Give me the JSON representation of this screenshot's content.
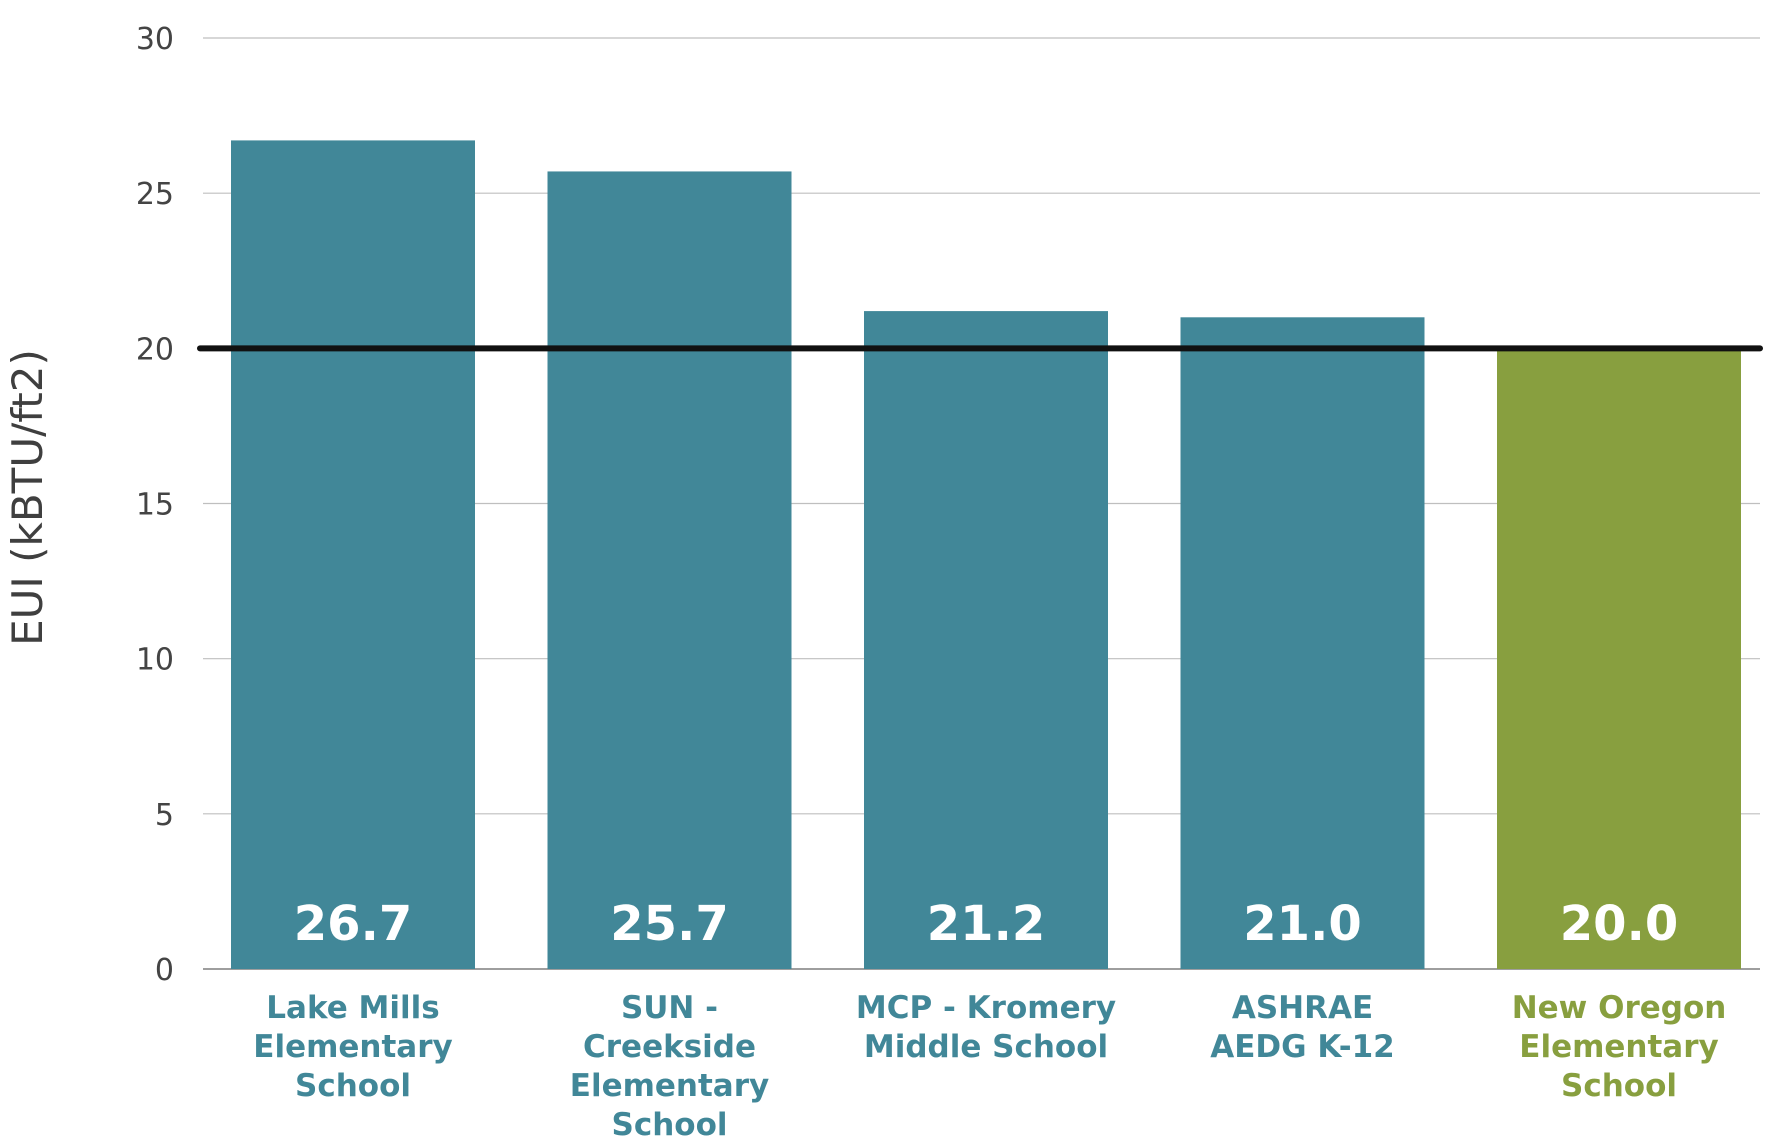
{
  "chart_data": {
    "type": "bar",
    "title": "",
    "xlabel": "",
    "ylabel": "EUI (kBTU/ft2)",
    "ylim": [
      0,
      30
    ],
    "yticks": [
      0,
      5,
      10,
      15,
      20,
      25,
      30
    ],
    "grid": true,
    "categories": [
      [
        "Lake Mills",
        "Elementary",
        "School"
      ],
      [
        "SUN -",
        "Creekside",
        "Elementary",
        "School"
      ],
      [
        "MCP - Kromery",
        "Middle School"
      ],
      [
        "ASHRAE",
        "AEDG K-12"
      ],
      [
        "New Oregon",
        "Elementary",
        "School"
      ]
    ],
    "values": [
      26.7,
      25.7,
      21.2,
      21.0,
      20.0
    ],
    "value_labels": [
      "26.7",
      "25.7",
      "21.2",
      "21.0",
      "20.0"
    ],
    "highlight_index": 4,
    "reference_line": {
      "value": 20,
      "color": "#111111"
    },
    "colors": {
      "bar": "#418798",
      "highlight": "#889f3f",
      "grid": "#bfbfbf",
      "axis": "#7f7f7f"
    }
  }
}
